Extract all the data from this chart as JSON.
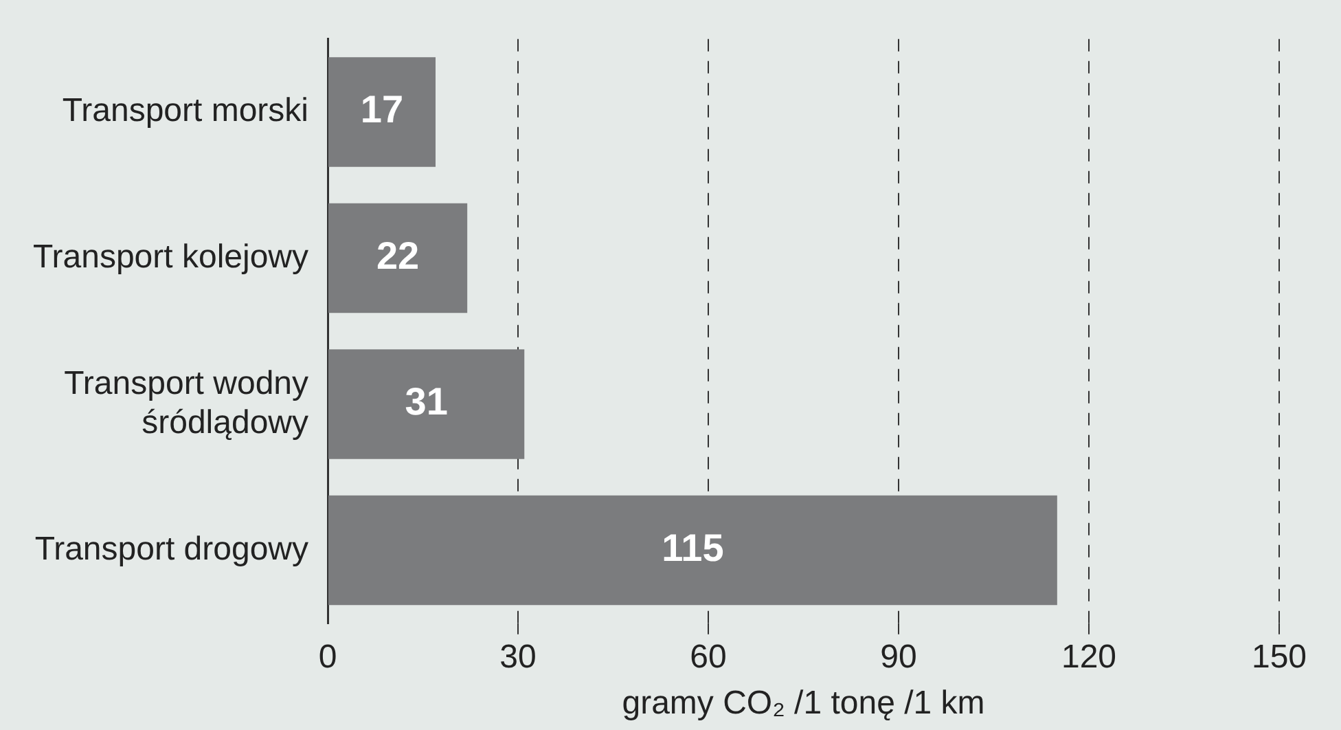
{
  "chart_data": {
    "type": "bar",
    "orientation": "horizontal",
    "categories": [
      "Transport morski",
      "Transport kolejowy",
      "Transport wodny śródlądowy",
      "Transport drogowy"
    ],
    "values": [
      17,
      22,
      31,
      115
    ],
    "color": "#7b7c7e",
    "data_labels": true,
    "xlim": [
      0,
      150
    ],
    "xticks": [
      0,
      30,
      60,
      90,
      120,
      150
    ],
    "xlabel": "gramy CO₂ /1 tonę /1 km",
    "grid": "x",
    "legend": false
  }
}
